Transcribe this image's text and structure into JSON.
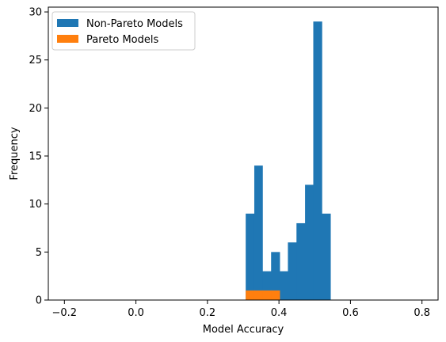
{
  "chart_data": {
    "type": "bar",
    "title": "",
    "xlabel": "Model Accuracy",
    "ylabel": "Frequency",
    "xlim": [
      -0.245,
      0.845
    ],
    "ylim": [
      0,
      30.5
    ],
    "xticks": [
      -0.2,
      0.0,
      0.2,
      0.4,
      0.6,
      0.8
    ],
    "xtick_labels": [
      "−0.2",
      "0.0",
      "0.2",
      "0.4",
      "0.6",
      "0.8"
    ],
    "yticks": [
      0,
      5,
      10,
      15,
      20,
      25,
      30
    ],
    "ytick_labels": [
      "0",
      "5",
      "10",
      "15",
      "20",
      "25",
      "30"
    ],
    "grid": false,
    "legend_position": "top-left",
    "series": [
      {
        "name": "Non-Pareto Models",
        "color": "#1f77b4",
        "bins": [
          {
            "x0": 0.307,
            "x1": 0.331,
            "value": 9
          },
          {
            "x0": 0.331,
            "x1": 0.354,
            "value": 14
          },
          {
            "x0": 0.354,
            "x1": 0.378,
            "value": 3
          },
          {
            "x0": 0.378,
            "x1": 0.402,
            "value": 5
          },
          {
            "x0": 0.402,
            "x1": 0.425,
            "value": 3
          },
          {
            "x0": 0.425,
            "x1": 0.449,
            "value": 6
          },
          {
            "x0": 0.449,
            "x1": 0.473,
            "value": 8
          },
          {
            "x0": 0.473,
            "x1": 0.496,
            "value": 12
          },
          {
            "x0": 0.496,
            "x1": 0.52,
            "value": 29
          },
          {
            "x0": 0.52,
            "x1": 0.544,
            "value": 9
          }
        ]
      },
      {
        "name": "Pareto Models",
        "color": "#ff7f0e",
        "bins": [
          {
            "x0": 0.307,
            "x1": 0.331,
            "value": 1
          },
          {
            "x0": 0.331,
            "x1": 0.354,
            "value": 1
          },
          {
            "x0": 0.354,
            "x1": 0.378,
            "value": 1
          },
          {
            "x0": 0.378,
            "x1": 0.402,
            "value": 1
          }
        ]
      }
    ]
  }
}
